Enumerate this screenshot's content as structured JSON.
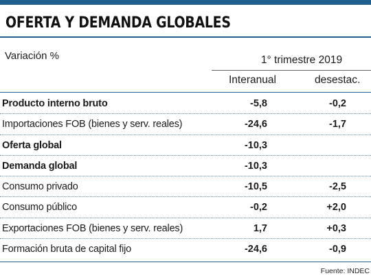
{
  "title": "OFERTA Y DEMANDA GLOBALES",
  "variation_label": "Variación %",
  "period_label": "1° trimestre 2019",
  "columns": [
    "Interanual",
    "desestac."
  ],
  "rows": [
    {
      "label": "Producto interno bruto",
      "bold": true,
      "interanual": "-5,8",
      "desestac": "-0,2"
    },
    {
      "label": "Importaciones FOB (bienes y serv. reales)",
      "bold": false,
      "interanual": "-24,6",
      "desestac": "-1,7"
    },
    {
      "label": "Oferta global",
      "bold": true,
      "interanual": "-10,3",
      "desestac": ""
    },
    {
      "label": "Demanda global",
      "bold": true,
      "interanual": "-10,3",
      "desestac": ""
    },
    {
      "label": "Consumo privado",
      "bold": false,
      "interanual": "-10,5",
      "desestac": "-2,5"
    },
    {
      "label": "Consumo público",
      "bold": false,
      "interanual": "-0,2",
      "desestac": "+2,0"
    },
    {
      "label": "Exportaciones FOB (bienes y serv. reales)",
      "bold": false,
      "interanual": "1,7",
      "desestac": "+0,3"
    },
    {
      "label": "Formación bruta de capital fijo",
      "bold": false,
      "interanual": "-24,6",
      "desestac": "-0,9"
    }
  ],
  "source": "Fuente: INDEC",
  "colors": {
    "accent": "#1f5f8f",
    "text": "#1a1a1a"
  }
}
